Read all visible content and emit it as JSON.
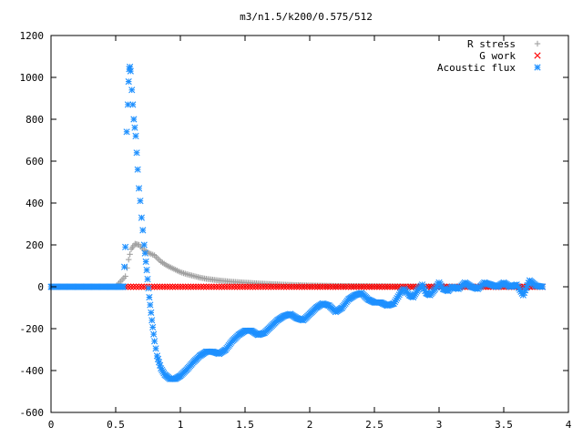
{
  "chart_data": {
    "type": "scatter",
    "title": "m3/n1.5/k200/0.575/512",
    "xlabel": "",
    "ylabel": "",
    "xlim": [
      0,
      4
    ],
    "ylim": [
      -600,
      1200
    ],
    "x_ticks": [
      0,
      0.5,
      1,
      1.5,
      2,
      2.5,
      3,
      3.5,
      4
    ],
    "x_tick_labels": [
      "0",
      "0.5",
      "1",
      "1.5",
      "2",
      "2.5",
      "3",
      "3.5",
      "4"
    ],
    "y_ticks": [
      -600,
      -400,
      -200,
      0,
      200,
      400,
      600,
      800,
      1000,
      1200
    ],
    "y_tick_labels": [
      "-600",
      "-400",
      "-200",
      "0",
      "200",
      "400",
      "600",
      "800",
      "1000",
      "1200"
    ],
    "grid": false,
    "legend_position": "top-right",
    "series": [
      {
        "name": "R stress",
        "marker": "plus",
        "color": "#a0a0a0",
        "points": [
          [
            0.0,
            0
          ],
          [
            0.5,
            0
          ],
          [
            0.575,
            50
          ],
          [
            0.6,
            130
          ],
          [
            0.62,
            180
          ],
          [
            0.65,
            205
          ],
          [
            0.68,
            200
          ],
          [
            0.72,
            175
          ],
          [
            0.76,
            160
          ],
          [
            0.8,
            150
          ],
          [
            0.85,
            120
          ],
          [
            0.9,
            100
          ],
          [
            0.95,
            85
          ],
          [
            1.0,
            70
          ],
          [
            1.05,
            60
          ],
          [
            1.1,
            52
          ],
          [
            1.15,
            44
          ],
          [
            1.2,
            38
          ],
          [
            1.3,
            30
          ],
          [
            1.4,
            24
          ],
          [
            1.5,
            20
          ],
          [
            1.6,
            16
          ],
          [
            1.7,
            13
          ],
          [
            1.8,
            10
          ],
          [
            1.9,
            8
          ],
          [
            2.0,
            6
          ],
          [
            2.2,
            4
          ],
          [
            2.4,
            3
          ],
          [
            2.6,
            2
          ],
          [
            2.8,
            1
          ],
          [
            3.0,
            1
          ],
          [
            3.5,
            0
          ],
          [
            3.8,
            0
          ]
        ]
      },
      {
        "name": "G work",
        "marker": "cross",
        "color": "#ff0000",
        "points": [
          [
            0.575,
            0
          ],
          [
            0.7,
            0
          ],
          [
            0.9,
            0
          ],
          [
            1.1,
            0
          ],
          [
            1.3,
            0
          ],
          [
            1.5,
            0
          ],
          [
            1.7,
            0
          ],
          [
            1.9,
            0
          ],
          [
            2.1,
            0
          ],
          [
            2.3,
            0
          ],
          [
            2.5,
            0
          ],
          [
            2.7,
            0
          ],
          [
            2.9,
            0
          ],
          [
            3.1,
            0
          ],
          [
            3.3,
            0
          ],
          [
            3.5,
            0
          ],
          [
            3.7,
            0
          ],
          [
            3.8,
            0
          ]
        ]
      },
      {
        "name": "Acoustic flux",
        "marker": "star",
        "color": "#1e90ff",
        "points": [
          [
            0.0,
            0
          ],
          [
            0.5,
            0
          ],
          [
            0.56,
            0
          ],
          [
            0.575,
            190
          ],
          [
            0.585,
            740
          ],
          [
            0.595,
            870
          ],
          [
            0.6,
            980
          ],
          [
            0.605,
            1040
          ],
          [
            0.61,
            1050
          ],
          [
            0.615,
            1030
          ],
          [
            0.625,
            940
          ],
          [
            0.64,
            800
          ],
          [
            0.655,
            720
          ],
          [
            0.67,
            560
          ],
          [
            0.68,
            470
          ],
          [
            0.69,
            410
          ],
          [
            0.7,
            330
          ],
          [
            0.71,
            270
          ],
          [
            0.72,
            200
          ],
          [
            0.74,
            80
          ],
          [
            0.76,
            -50
          ],
          [
            0.78,
            -160
          ],
          [
            0.8,
            -260
          ],
          [
            0.82,
            -330
          ],
          [
            0.85,
            -390
          ],
          [
            0.88,
            -420
          ],
          [
            0.92,
            -440
          ],
          [
            0.96,
            -440
          ],
          [
            1.0,
            -425
          ],
          [
            1.05,
            -395
          ],
          [
            1.1,
            -360
          ],
          [
            1.15,
            -330
          ],
          [
            1.2,
            -310
          ],
          [
            1.25,
            -310
          ],
          [
            1.3,
            -320
          ],
          [
            1.35,
            -300
          ],
          [
            1.4,
            -260
          ],
          [
            1.45,
            -230
          ],
          [
            1.5,
            -210
          ],
          [
            1.55,
            -210
          ],
          [
            1.6,
            -230
          ],
          [
            1.65,
            -220
          ],
          [
            1.7,
            -190
          ],
          [
            1.75,
            -160
          ],
          [
            1.8,
            -140
          ],
          [
            1.85,
            -130
          ],
          [
            1.9,
            -150
          ],
          [
            1.95,
            -160
          ],
          [
            2.0,
            -130
          ],
          [
            2.05,
            -100
          ],
          [
            2.1,
            -80
          ],
          [
            2.15,
            -90
          ],
          [
            2.2,
            -120
          ],
          [
            2.25,
            -100
          ],
          [
            2.3,
            -60
          ],
          [
            2.35,
            -40
          ],
          [
            2.4,
            -30
          ],
          [
            2.45,
            -60
          ],
          [
            2.5,
            -75
          ],
          [
            2.55,
            -75
          ],
          [
            2.6,
            -90
          ],
          [
            2.65,
            -80
          ],
          [
            2.7,
            -30
          ],
          [
            2.73,
            -10
          ],
          [
            2.77,
            -40
          ],
          [
            2.8,
            -50
          ],
          [
            2.83,
            -20
          ],
          [
            2.87,
            10
          ],
          [
            2.9,
            -30
          ],
          [
            2.93,
            -40
          ],
          [
            2.97,
            -10
          ],
          [
            3.0,
            20
          ],
          [
            3.03,
            -10
          ],
          [
            3.07,
            -20
          ],
          [
            3.1,
            0
          ],
          [
            3.15,
            -10
          ],
          [
            3.2,
            20
          ],
          [
            3.25,
            0
          ],
          [
            3.3,
            -10
          ],
          [
            3.35,
            20
          ],
          [
            3.4,
            10
          ],
          [
            3.45,
            0
          ],
          [
            3.5,
            20
          ],
          [
            3.55,
            0
          ],
          [
            3.6,
            10
          ],
          [
            3.65,
            -40
          ],
          [
            3.7,
            30
          ],
          [
            3.75,
            5
          ],
          [
            3.8,
            0
          ]
        ]
      }
    ]
  }
}
